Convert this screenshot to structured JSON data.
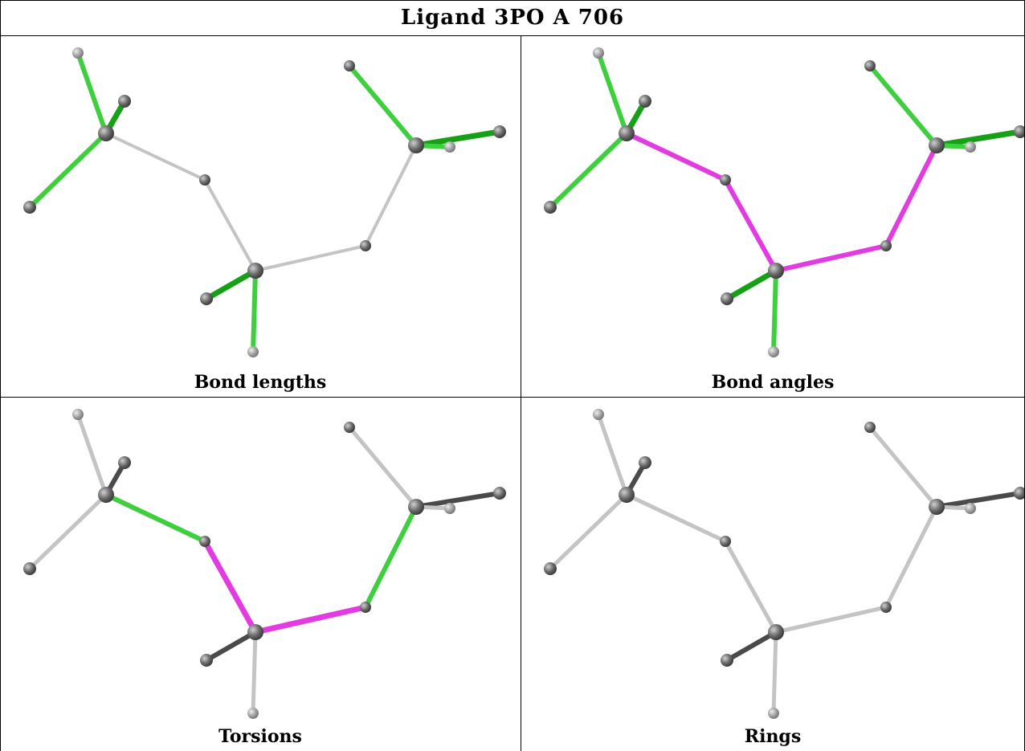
{
  "title": "Ligand 3PO A 706",
  "panels": [
    {
      "caption": "Bond lengths",
      "mode": "lengths"
    },
    {
      "caption": "Bond angles",
      "mode": "angles"
    },
    {
      "caption": "Torsions",
      "mode": "torsions"
    },
    {
      "caption": "Rings",
      "mode": "rings"
    }
  ],
  "colors": {
    "green": "#3ecf3e",
    "dark_green": "#16a016",
    "magenta": "#e23be2",
    "grey_bond": "#c4c4c4",
    "dark_bond": "#333333",
    "atom_dark": "#6e6e6e",
    "atom_light": "#a8a8a8"
  }
}
